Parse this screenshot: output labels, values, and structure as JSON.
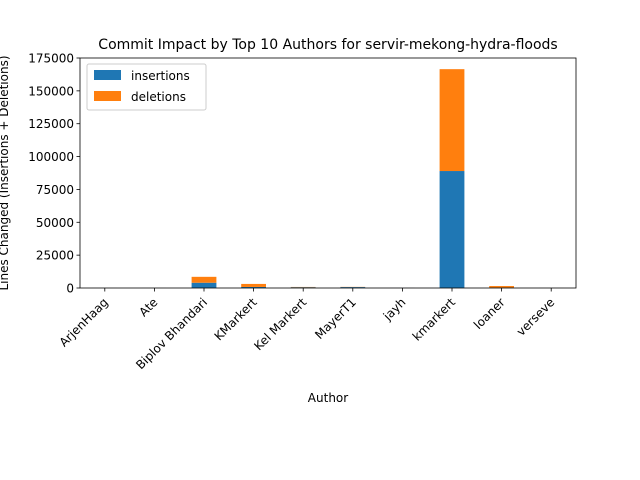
{
  "chart_data": {
    "type": "bar",
    "stacked": true,
    "title": "Commit Impact by Top 10 Authors for servir-mekong-hydra-floods",
    "xlabel": "Author",
    "ylabel": "Lines Changed (Insertions + Deletions)",
    "categories": [
      "ArjenHaag",
      "Ate",
      "Biplov Bhandari",
      "KMarkert",
      "Kel Markert",
      "MayerT1",
      "jayh",
      "kmarkert",
      "loaner",
      "verseve"
    ],
    "series": [
      {
        "name": "insertions",
        "color": "#1f77b4",
        "values": [
          20,
          10,
          4000,
          800,
          600,
          700,
          50,
          89000,
          300,
          30
        ]
      },
      {
        "name": "deletions",
        "color": "#ff7f0e",
        "values": [
          10,
          5,
          4500,
          2300,
          200,
          150,
          20,
          77500,
          1200,
          15
        ]
      }
    ],
    "ylim": [
      0,
      175000
    ],
    "yticks": [
      0,
      25000,
      50000,
      75000,
      100000,
      125000,
      150000,
      175000
    ],
    "legend_position": "top-left"
  }
}
